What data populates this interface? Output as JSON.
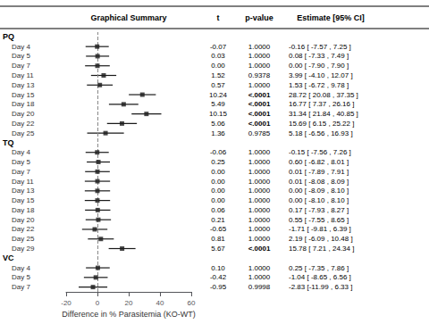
{
  "chart_data": {
    "type": "forest",
    "title": "Graphical Summary",
    "xlabel": "Difference in % Parasitemia (KO-WT)",
    "column_t": "t",
    "column_p": "p-value",
    "column_estimate": "Estimate [95% CI]",
    "xlim": [
      -20,
      60
    ],
    "xticks": [
      -20,
      0,
      20,
      40,
      60
    ],
    "grid": false,
    "color": "#1a1a1a",
    "ref_line": 0,
    "groups": [
      {
        "name": "PQ",
        "rows": [
          {
            "label": "Day 4",
            "est": -0.16,
            "lo": -7.57,
            "hi": 7.25,
            "t": "-0.07",
            "p": "1.0000",
            "ci": "-0.16 [ -7.57 , 7.25 ]"
          },
          {
            "label": "Day 5",
            "est": 0.08,
            "lo": -7.33,
            "hi": 7.49,
            "t": "0.03",
            "p": "1.0000",
            "ci": "0.08 [ -7.33 , 7.49 ]"
          },
          {
            "label": "Day 7",
            "est": 0.0,
            "lo": -7.9,
            "hi": 7.9,
            "t": "0.00",
            "p": "1.0000",
            "ci": "0.00 [ -7.90 , 7.90 ]"
          },
          {
            "label": "Day 11",
            "est": 3.99,
            "lo": -4.1,
            "hi": 12.07,
            "t": "1.52",
            "p": "0.9378",
            "ci": "3.99 [ -4.10 , 12.07 ]"
          },
          {
            "label": "Day 13",
            "est": 1.53,
            "lo": -6.72,
            "hi": 9.78,
            "t": "0.57",
            "p": "1.0000",
            "ci": "1.53 [ -6.72 , 9.78 ]"
          },
          {
            "label": "Day 15",
            "est": 28.72,
            "lo": 20.08,
            "hi": 37.35,
            "t": "10.24",
            "p": "<.0001",
            "ci": "28.72 [ 20.08 , 37.35 ]"
          },
          {
            "label": "Day 18",
            "est": 16.77,
            "lo": 7.37,
            "hi": 26.16,
            "t": "5.49",
            "p": "<.0001",
            "ci": "16.77 [ 7.37 , 26.16 ]"
          },
          {
            "label": "Day 20",
            "est": 31.34,
            "lo": 21.84,
            "hi": 40.85,
            "t": "10.15",
            "p": "<.0001",
            "ci": "31.34 [ 21.84 , 40.85 ]"
          },
          {
            "label": "Day 22",
            "est": 15.69,
            "lo": 6.15,
            "hi": 25.22,
            "t": "5.06",
            "p": "<.0001",
            "ci": "15.69 [ 6.15 , 25.22 ]"
          },
          {
            "label": "Day 25",
            "est": 5.18,
            "lo": -6.56,
            "hi": 16.93,
            "t": "1.36",
            "p": "0.9785",
            "ci": "5.18 [ -6.56 , 16.93 ]"
          }
        ]
      },
      {
        "name": "TQ",
        "rows": [
          {
            "label": "Day 4",
            "est": -0.15,
            "lo": -7.56,
            "hi": 7.26,
            "t": "-0.06",
            "p": "1.0000",
            "ci": "-0.15 [ -7.56 , 7.26 ]"
          },
          {
            "label": "Day 5",
            "est": 0.6,
            "lo": -6.82,
            "hi": 8.01,
            "t": "0.25",
            "p": "1.0000",
            "ci": "0.60 [ -6.82 , 8.01 ]"
          },
          {
            "label": "Day 7",
            "est": 0.01,
            "lo": -7.89,
            "hi": 7.91,
            "t": "0.00",
            "p": "1.0000",
            "ci": "0.01 [ -7.89 , 7.91 ]"
          },
          {
            "label": "Day 11",
            "est": 0.01,
            "lo": -8.08,
            "hi": 8.09,
            "t": "0.00",
            "p": "1.0000",
            "ci": "0.01 [ -8.08 , 8.09 ]"
          },
          {
            "label": "Day 13",
            "est": 0.0,
            "lo": -8.09,
            "hi": 8.1,
            "t": "0.00",
            "p": "1.0000",
            "ci": "0.00 [ -8.09 , 8.10 ]"
          },
          {
            "label": "Day 15",
            "est": 0.0,
            "lo": -8.1,
            "hi": 8.1,
            "t": "0.00",
            "p": "1.0000",
            "ci": "0.00 [ -8.10 , 8.10 ]"
          },
          {
            "label": "Day 18",
            "est": 0.17,
            "lo": -7.93,
            "hi": 8.27,
            "t": "0.06",
            "p": "1.0000",
            "ci": "0.17 [ -7.93 , 8.27 ]"
          },
          {
            "label": "Day 20",
            "est": 0.55,
            "lo": -7.55,
            "hi": 8.65,
            "t": "0.21",
            "p": "1.0000",
            "ci": "0.55 [ -7.55 , 8.65 ]"
          },
          {
            "label": "Day 22",
            "est": -1.71,
            "lo": -9.81,
            "hi": 6.39,
            "t": "-0.65",
            "p": "1.0000",
            "ci": "-1.71 [ -9.81 , 6.39 ]"
          },
          {
            "label": "Day 25",
            "est": 2.19,
            "lo": -6.09,
            "hi": 10.48,
            "t": "0.81",
            "p": "1.0000",
            "ci": "2.19 [ -6.09 , 10.48 ]"
          },
          {
            "label": "Day 29",
            "est": 15.78,
            "lo": 7.21,
            "hi": 24.34,
            "t": "5.67",
            "p": "<.0001",
            "ci": "15.78 [ 7.21 , 24.34 ]"
          }
        ]
      },
      {
        "name": "VC",
        "rows": [
          {
            "label": "Day 4",
            "est": 0.25,
            "lo": -7.35,
            "hi": 7.86,
            "t": "0.10",
            "p": "1.0000",
            "ci": "0.25 [ -7.35 , 7.86 ]"
          },
          {
            "label": "Day 5",
            "est": -1.04,
            "lo": -8.65,
            "hi": 6.56,
            "t": "-0.42",
            "p": "1.0000",
            "ci": "-1.04 [ -8.65 , 6.56 ]"
          },
          {
            "label": "Day 7",
            "est": -2.83,
            "lo": -11.99,
            "hi": 6.33,
            "t": "-0.95",
            "p": "0.9998",
            "ci": "-2.83 [-11.99 , 6.33 ]"
          }
        ]
      }
    ]
  }
}
